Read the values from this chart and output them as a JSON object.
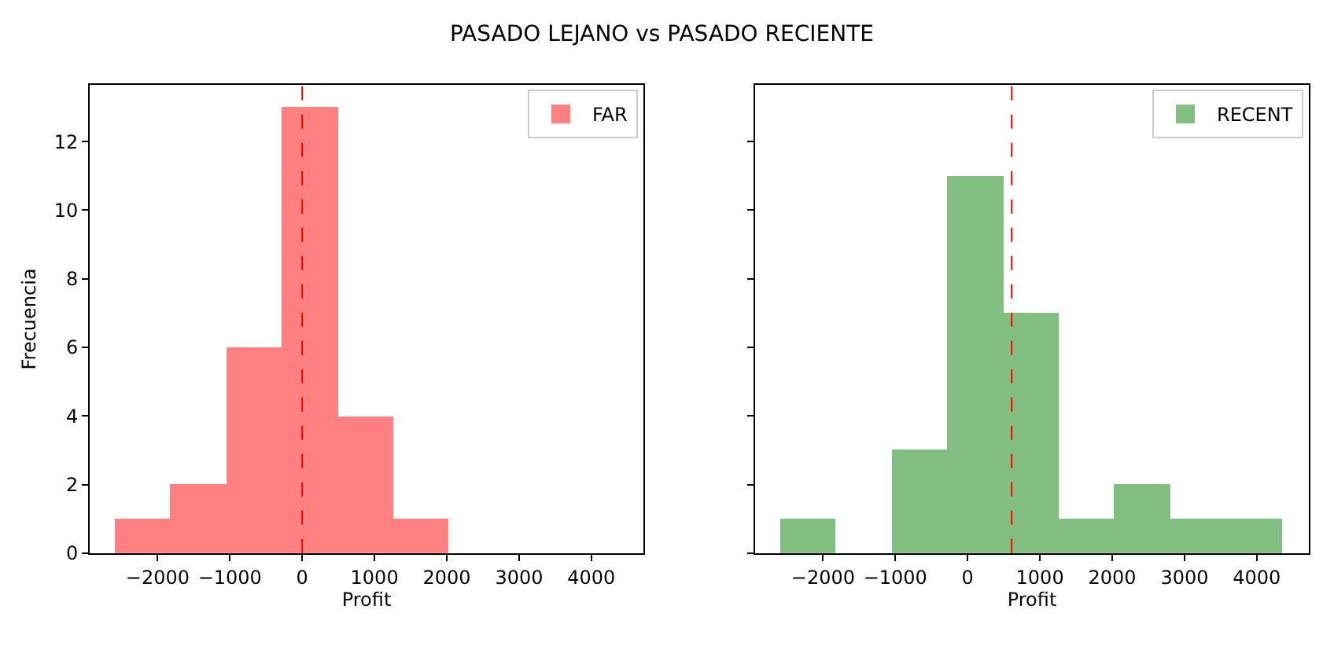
{
  "chart_data": [
    {
      "type": "histogram",
      "title": "PASADO LEJANO vs PASADO RECIENTE",
      "xlabel": "Profit",
      "ylabel": "Frecuencia",
      "bins": [
        -2590,
        -1820,
        -1050,
        -280,
        490,
        1260,
        2030
      ],
      "series": [
        {
          "name": "FAR",
          "color": "#ff8080",
          "values": [
            1,
            2,
            6,
            13,
            4,
            1
          ]
        }
      ],
      "xlim": [
        -2940,
        4720
      ],
      "xticks": [
        -2000,
        -1000,
        0,
        1000,
        2000,
        3000,
        4000
      ],
      "ylim": [
        0,
        13.65
      ],
      "yticks": [
        0,
        2,
        4,
        6,
        8,
        10,
        12
      ],
      "ref_lines": [
        {
          "axis": "x",
          "value": 0,
          "color": "#ff0000",
          "line_style": "dashed"
        }
      ],
      "legend": "top right"
    },
    {
      "type": "histogram",
      "xlabel": "Profit",
      "bins": [
        -2590,
        -1820,
        -1050,
        -280,
        490,
        1260,
        2030,
        2800,
        3570,
        4340
      ],
      "series": [
        {
          "name": "RECENT",
          "color": "#80bf80",
          "values": [
            1,
            0,
            3,
            11,
            7,
            1,
            2,
            1,
            1
          ]
        }
      ],
      "xlim": [
        -2940,
        4720
      ],
      "xticks": [
        -2000,
        -1000,
        0,
        1000,
        2000,
        3000,
        4000
      ],
      "ylim": [
        0,
        13.65
      ],
      "yticks": [
        0,
        2,
        4,
        6,
        8,
        10,
        12
      ],
      "tick_labels": "x",
      "ref_lines": [
        {
          "axis": "x",
          "value": 610,
          "color": "#ff0000",
          "line_style": "dashed"
        }
      ],
      "legend": "top right"
    }
  ]
}
